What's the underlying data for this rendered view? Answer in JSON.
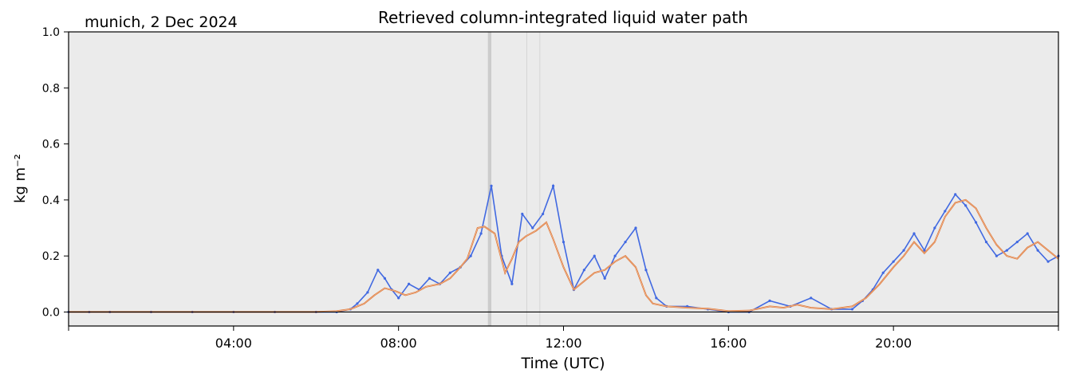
{
  "chart_data": {
    "type": "line",
    "title": "Retrieved column-integrated liquid water path",
    "subtitle": "munich, 2 Dec 2024",
    "xlabel": "Time (UTC)",
    "ylabel": "kg m⁻²",
    "xlim": [
      "00:00",
      "24:00"
    ],
    "ylim": [
      -0.05,
      1.0
    ],
    "x_ticks": [
      "04:00",
      "08:00",
      "12:00",
      "16:00",
      "20:00"
    ],
    "y_ticks": [
      "0.0",
      "0.2",
      "0.4",
      "0.6",
      "0.8",
      "1.0"
    ],
    "grid": false,
    "background_color": "#ebebeb",
    "zero_line": 0.0,
    "shaded_periods": [
      {
        "start": "10:10",
        "end": "10:15",
        "color": "#cccccc"
      },
      {
        "start": "11:06",
        "end": "11:07",
        "color": "#d6d6d6"
      },
      {
        "start": "11:25",
        "end": "11:26",
        "color": "#d6d6d6"
      }
    ],
    "series": [
      {
        "role": "retrieved",
        "style": "scatter",
        "color": "#4169e1",
        "x": [
          "00:00",
          "00:30",
          "01:00",
          "02:00",
          "03:00",
          "04:00",
          "05:00",
          "06:00",
          "06:30",
          "06:50",
          "07:00",
          "07:15",
          "07:30",
          "07:40",
          "07:50",
          "08:00",
          "08:15",
          "08:30",
          "08:45",
          "09:00",
          "09:15",
          "09:30",
          "09:45",
          "10:00",
          "10:15",
          "10:30",
          "10:45",
          "11:00",
          "11:15",
          "11:30",
          "11:45",
          "12:00",
          "12:15",
          "12:30",
          "12:45",
          "13:00",
          "13:15",
          "13:30",
          "13:45",
          "14:00",
          "14:15",
          "14:30",
          "15:00",
          "15:30",
          "16:00",
          "16:30",
          "17:00",
          "17:30",
          "18:00",
          "18:30",
          "19:00",
          "19:15",
          "19:30",
          "19:45",
          "20:00",
          "20:15",
          "20:30",
          "20:45",
          "21:00",
          "21:15",
          "21:30",
          "21:45",
          "22:00",
          "22:15",
          "22:30",
          "22:45",
          "23:00",
          "23:15",
          "23:30",
          "23:45",
          "24:00"
        ],
        "values": [
          0.0,
          0.0,
          0.0,
          0.0,
          0.0,
          0.0,
          0.0,
          0.0,
          0.0,
          0.01,
          0.03,
          0.07,
          0.15,
          0.12,
          0.08,
          0.05,
          0.1,
          0.08,
          0.12,
          0.1,
          0.14,
          0.16,
          0.2,
          0.28,
          0.45,
          0.2,
          0.1,
          0.35,
          0.3,
          0.35,
          0.45,
          0.25,
          0.08,
          0.15,
          0.2,
          0.12,
          0.2,
          0.25,
          0.3,
          0.15,
          0.05,
          0.02,
          0.02,
          0.01,
          0.0,
          0.0,
          0.04,
          0.02,
          0.05,
          0.01,
          0.01,
          0.04,
          0.08,
          0.14,
          0.18,
          0.22,
          0.28,
          0.22,
          0.3,
          0.36,
          0.42,
          0.38,
          0.32,
          0.25,
          0.2,
          0.22,
          0.25,
          0.28,
          0.22,
          0.18,
          0.2
        ]
      },
      {
        "role": "smoothed",
        "style": "line",
        "color": "#e07a3a",
        "x": [
          "00:00",
          "01:00",
          "02:00",
          "03:00",
          "04:00",
          "05:00",
          "06:00",
          "06:30",
          "06:50",
          "07:10",
          "07:25",
          "07:40",
          "07:55",
          "08:10",
          "08:25",
          "08:40",
          "09:00",
          "09:15",
          "09:30",
          "09:40",
          "09:55",
          "10:05",
          "10:20",
          "10:35",
          "10:45",
          "10:55",
          "11:05",
          "11:20",
          "11:35",
          "11:45",
          "12:00",
          "12:15",
          "12:30",
          "12:45",
          "13:00",
          "13:15",
          "13:30",
          "13:45",
          "14:00",
          "14:10",
          "14:30",
          "15:00",
          "15:30",
          "16:00",
          "16:30",
          "17:00",
          "17:20",
          "17:40",
          "18:00",
          "18:30",
          "19:00",
          "19:20",
          "19:40",
          "20:00",
          "20:15",
          "20:30",
          "20:45",
          "21:00",
          "21:15",
          "21:30",
          "21:45",
          "22:00",
          "22:15",
          "22:30",
          "22:45",
          "23:00",
          "23:15",
          "23:30",
          "23:45",
          "24:00"
        ],
        "values": [
          0.0,
          0.0,
          0.0,
          0.0,
          0.0,
          0.0,
          0.0,
          0.003,
          0.01,
          0.03,
          0.06,
          0.085,
          0.075,
          0.06,
          0.07,
          0.09,
          0.1,
          0.12,
          0.16,
          0.19,
          0.3,
          0.305,
          0.28,
          0.14,
          0.19,
          0.25,
          0.27,
          0.29,
          0.32,
          0.26,
          0.16,
          0.08,
          0.11,
          0.14,
          0.15,
          0.18,
          0.2,
          0.16,
          0.06,
          0.03,
          0.02,
          0.015,
          0.012,
          0.003,
          0.005,
          0.02,
          0.015,
          0.026,
          0.015,
          0.01,
          0.02,
          0.05,
          0.1,
          0.16,
          0.2,
          0.25,
          0.21,
          0.25,
          0.34,
          0.39,
          0.4,
          0.37,
          0.3,
          0.24,
          0.2,
          0.19,
          0.23,
          0.25,
          0.22,
          0.19
        ]
      }
    ]
  }
}
